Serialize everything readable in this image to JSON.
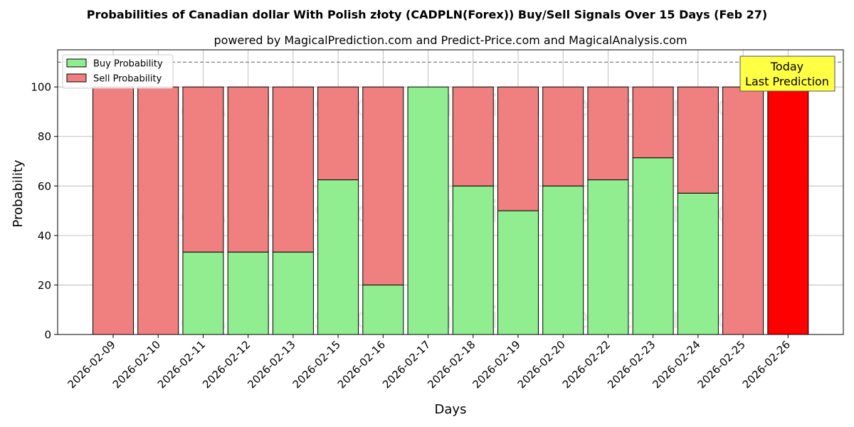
{
  "chart_data": {
    "type": "bar",
    "stacked": true,
    "title": "Probabilities of Canadian dollar With Polish złoty (CADPLN(Forex)) Buy/Sell Signals Over 15 Days (Feb 27)",
    "subtitle": "powered by MagicalPrediction.com and Predict-Price.com and MagicalAnalysis.com",
    "xlabel": "Days",
    "ylabel": "Probability",
    "ylim": [
      0,
      115
    ],
    "yticks": [
      0,
      20,
      40,
      60,
      80,
      100
    ],
    "grid": true,
    "legend_position": "top-left",
    "reference_line": 110,
    "categories": [
      "2026-02-09",
      "2026-02-10",
      "2026-02-11",
      "2026-02-12",
      "2026-02-13",
      "2026-02-15",
      "2026-02-16",
      "2026-02-17",
      "2026-02-18",
      "2026-02-19",
      "2026-02-20",
      "2026-02-22",
      "2026-02-23",
      "2026-02-24",
      "2026-02-25",
      "2026-02-26"
    ],
    "series": [
      {
        "name": "Buy Probability",
        "color": "#90ee90",
        "values": [
          0,
          0,
          33.3,
          33.3,
          33.3,
          62.5,
          20,
          100,
          60,
          50,
          60,
          62.5,
          71.4,
          57.1,
          0,
          0
        ]
      },
      {
        "name": "Sell Probability",
        "color": "#f08080",
        "values": [
          100,
          100,
          66.7,
          66.7,
          66.7,
          37.5,
          80,
          0,
          40,
          50,
          40,
          37.5,
          28.6,
          42.9,
          100,
          100
        ]
      }
    ],
    "highlight": {
      "index": 15,
      "color": "#ff0000"
    },
    "annotation": {
      "line1": "Today",
      "line2": "Last Prediction",
      "bg": "#ffff44"
    },
    "watermarks": [
      "MagicalAnalysis.com",
      "MagicalPrediction.com"
    ]
  }
}
